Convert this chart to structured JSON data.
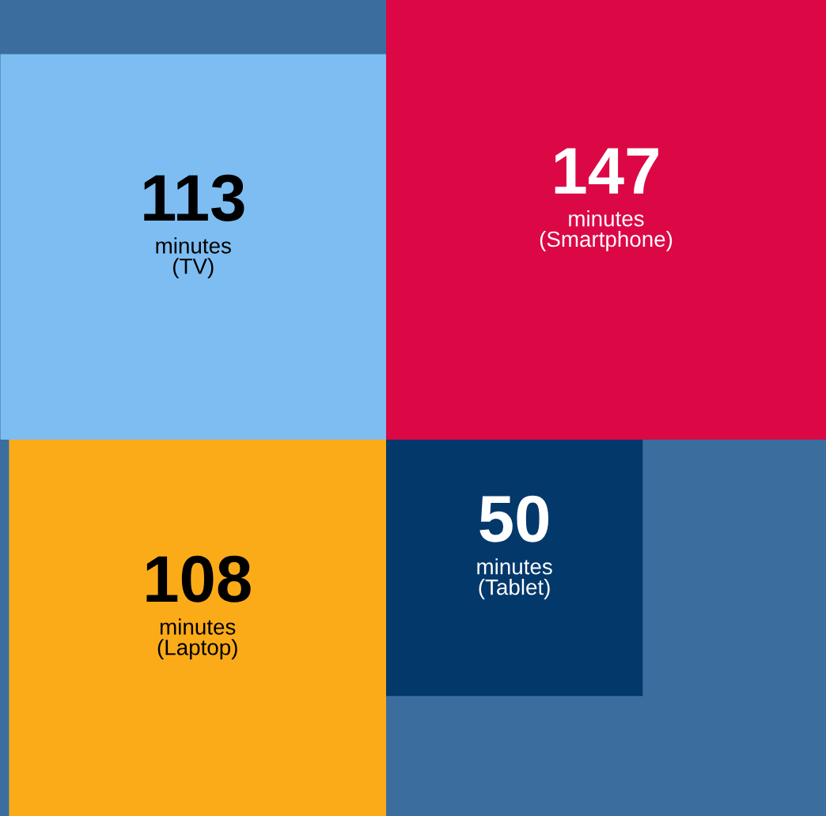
{
  "chart_data": {
    "type": "other",
    "categories": [
      "minutes\n(TV)",
      "minutes\n(Smartphone)",
      "minutes\n(Laptop)",
      "minutes\n(Tablet)"
    ],
    "values": [
      113,
      147,
      108,
      50
    ],
    "colors": [
      "#7dbdf2",
      "#dc0846",
      "#fbab18",
      "#03386b"
    ],
    "data_labels": true
  }
}
